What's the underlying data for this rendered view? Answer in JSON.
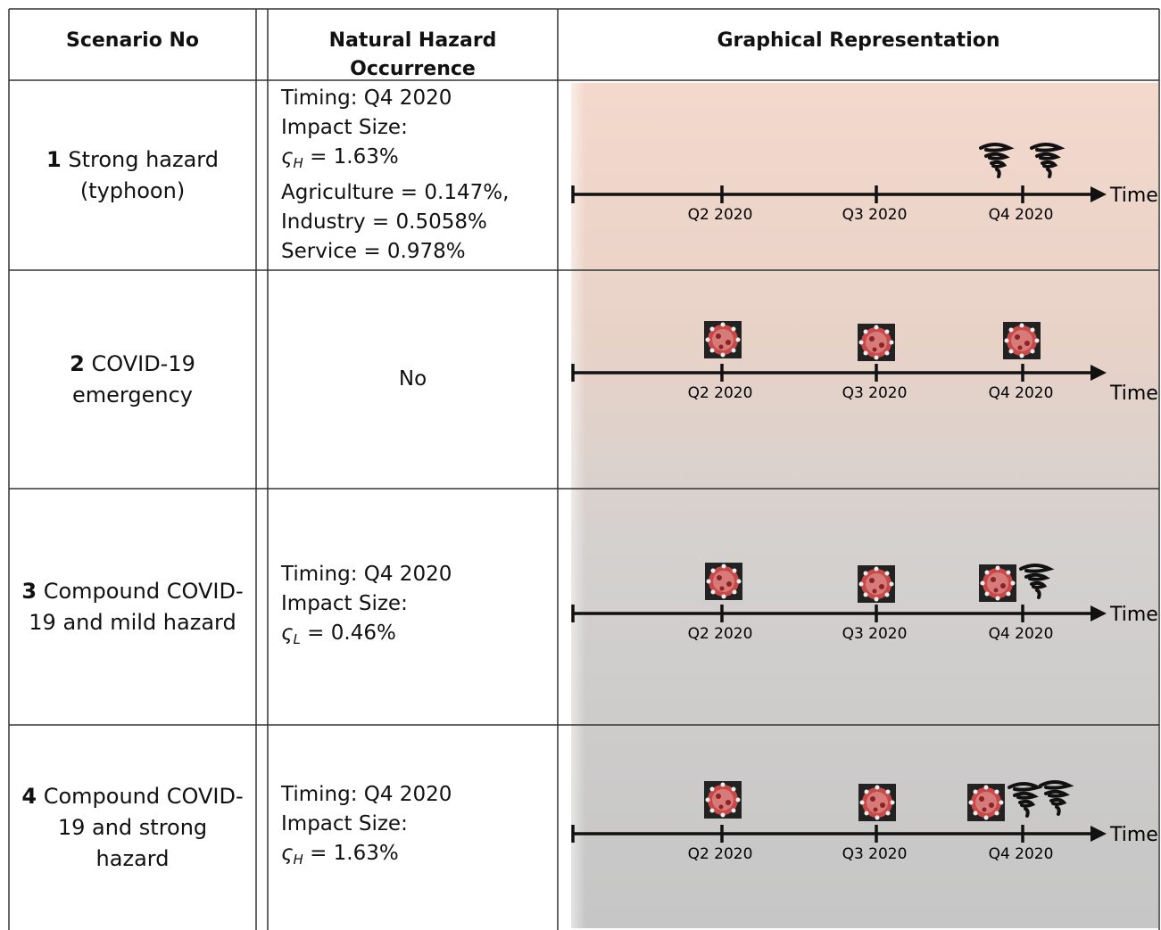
{
  "header": {
    "columns": [
      "Scenario No",
      "Natural Hazard Occurrence",
      "Graphical Representation"
    ]
  },
  "rows": [
    {
      "scenario": {
        "number": "1",
        "name": "Strong hazard (typhoon)"
      },
      "hazard": {
        "timing": "Timing: Q4 2020",
        "impact_label": "Impact Size:",
        "impact_symbol": "ς",
        "impact_subscript": "H",
        "impact_value": "= 1.63%",
        "sectors": [
          "Agriculture = 0.147%,",
          "Industry = 0.5058%",
          "Service = 0.978%"
        ]
      }
    },
    {
      "scenario": {
        "number": "2",
        "name": "COVID-19 emergency"
      },
      "hazard": {
        "text": "No"
      }
    },
    {
      "scenario": {
        "number": "3",
        "name": "Compound COVID-19 and mild hazard"
      },
      "hazard": {
        "timing": "Timing: Q4 2020",
        "impact_label": "Impact Size:",
        "impact_symbol": "ς",
        "impact_subscript": "L",
        "impact_value": "= 0.46%"
      }
    },
    {
      "scenario": {
        "number": "4",
        "name": "Compound COVID-19 and strong hazard"
      },
      "hazard": {
        "timing": "Timing: Q4 2020",
        "impact_label": "Impact Size:",
        "impact_symbol": "ς",
        "impact_subscript": "H",
        "impact_value": "= 1.63%"
      }
    }
  ],
  "timeline": {
    "ticks": [
      "Q2 2020",
      "Q3 2020",
      "Q4 2020"
    ],
    "axis_label": "Time"
  }
}
